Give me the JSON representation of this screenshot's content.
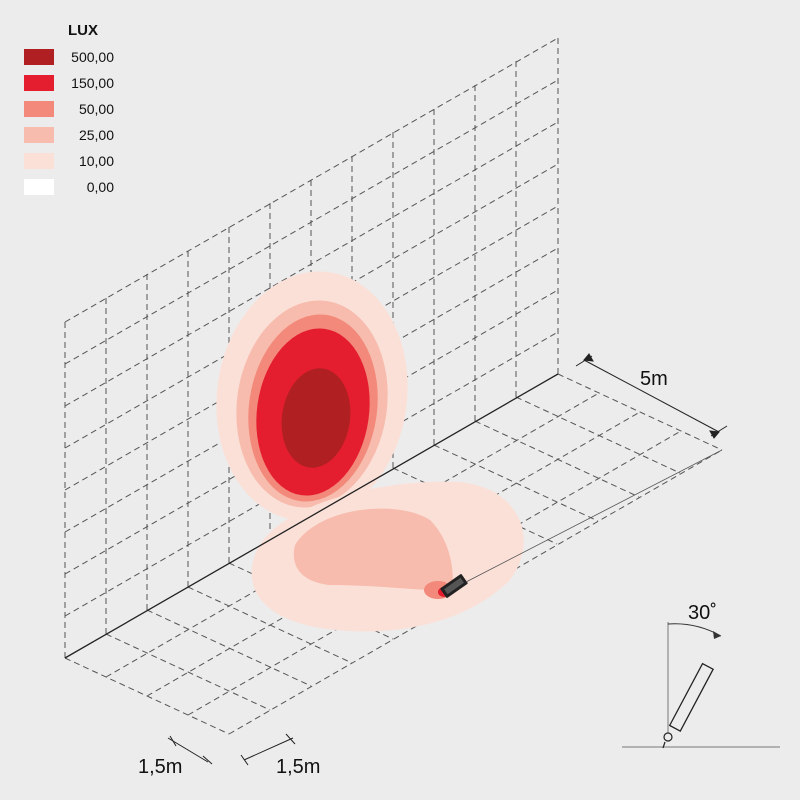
{
  "legend": {
    "title": "LUX",
    "items": [
      {
        "label": "500,00",
        "color": "#b01f22"
      },
      {
        "label": "150,00",
        "color": "#e41e2f"
      },
      {
        "label": "50,00",
        "color": "#f2897a"
      },
      {
        "label": "25,00",
        "color": "#f7bcad"
      },
      {
        "label": "10,00",
        "color": "#fbe0d8"
      },
      {
        "label": "0,00",
        "color": "#ffffff"
      }
    ]
  },
  "dimensions": {
    "distance": "5m",
    "grid_x": "1,5m",
    "grid_y": "1,5m"
  },
  "fixture": {
    "tilt_angle": "30˚"
  },
  "colors": {
    "background": "#ececec",
    "grid_line": "#555555",
    "axis_line": "#222222"
  }
}
